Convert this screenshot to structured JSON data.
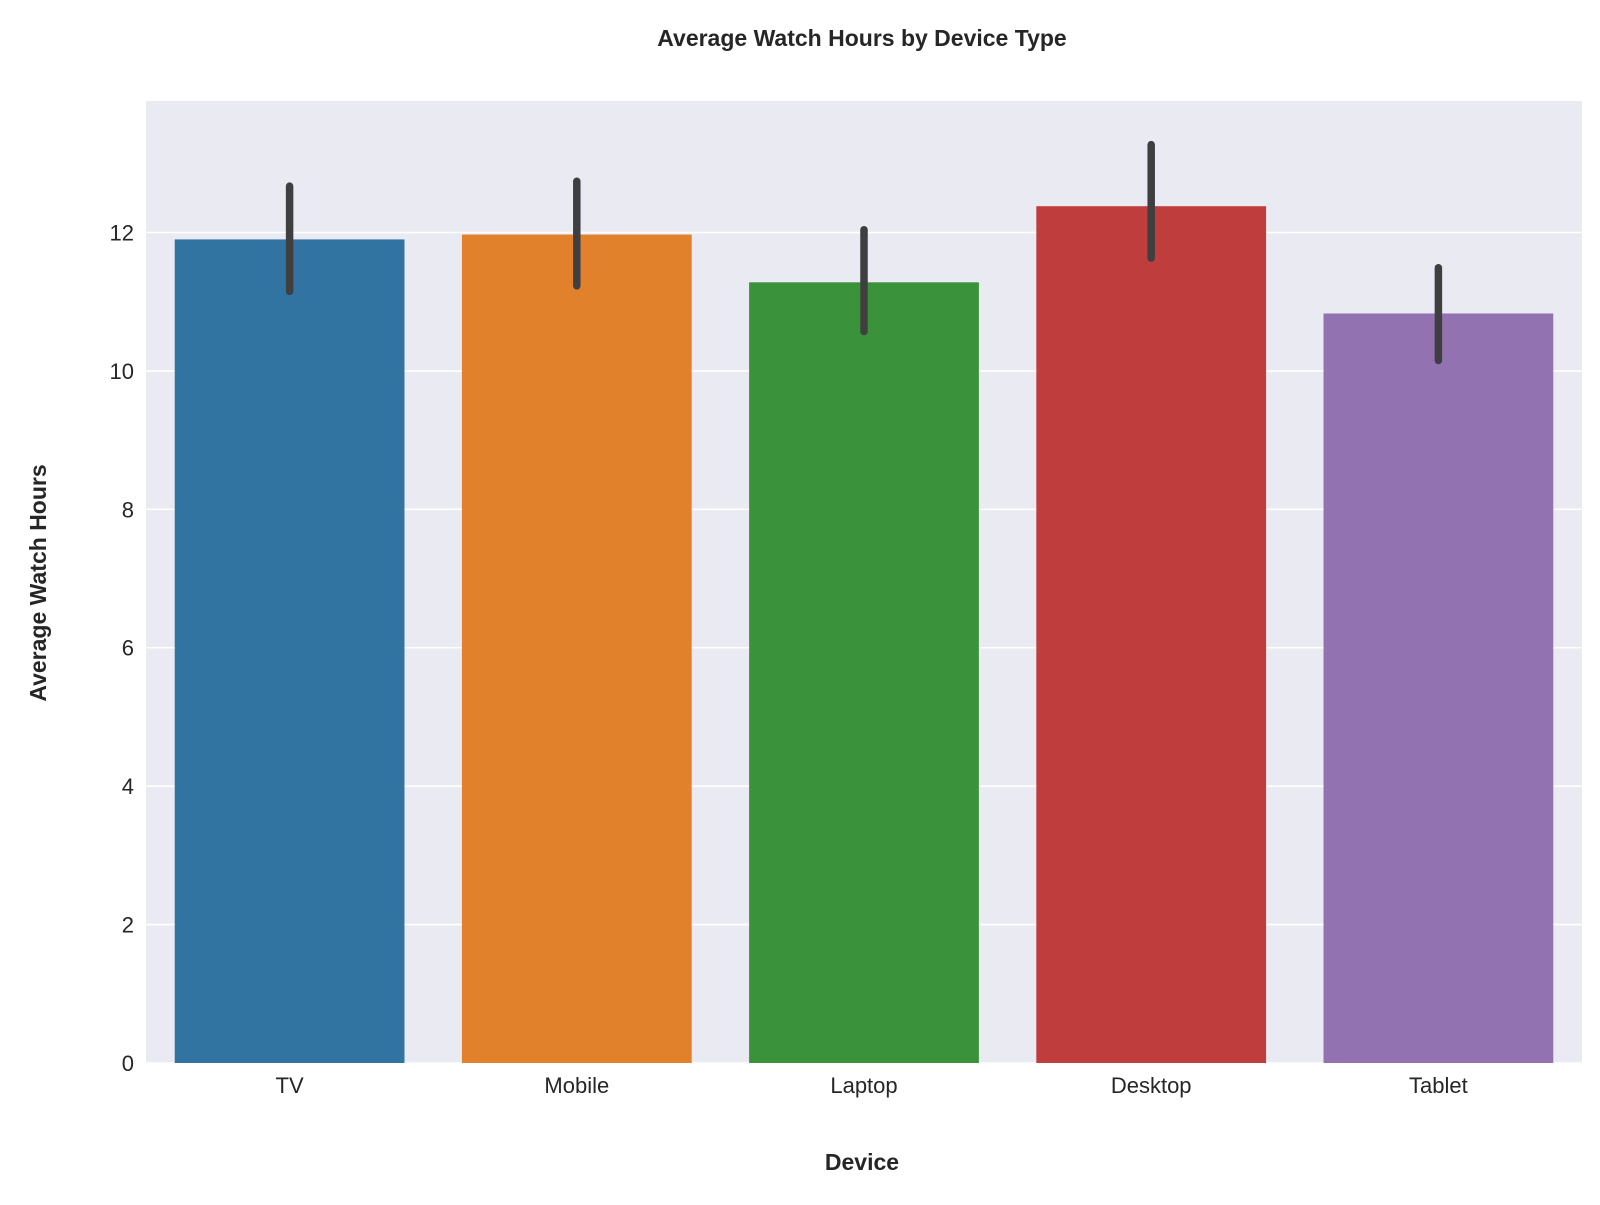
{
  "chart_data": {
    "type": "bar",
    "title": "Average Watch Hours by Device Type",
    "xlabel": "Device",
    "ylabel": "Average Watch Hours",
    "categories": [
      "TV",
      "Mobile",
      "Laptop",
      "Desktop",
      "Tablet"
    ],
    "values": [
      11.9,
      11.97,
      11.28,
      12.38,
      10.83
    ],
    "error_low": [
      11.15,
      11.23,
      10.57,
      11.63,
      10.15
    ],
    "error_high": [
      12.67,
      12.74,
      12.04,
      13.27,
      11.49
    ],
    "ylim": [
      0,
      13.9
    ],
    "yticks": [
      0,
      2,
      4,
      6,
      8,
      10,
      12
    ],
    "ytick_labels": [
      "0",
      "2",
      "4",
      "6",
      "8",
      "10",
      "12"
    ],
    "grid": true,
    "legend": "none",
    "colors": [
      "#3274a1",
      "#e1812c",
      "#3a923a",
      "#c03d3e",
      "#9372b2"
    ],
    "plot_background": "#eaeaf2",
    "grid_color": "#ffffff",
    "error_bar_color": "#3f3f3f"
  }
}
